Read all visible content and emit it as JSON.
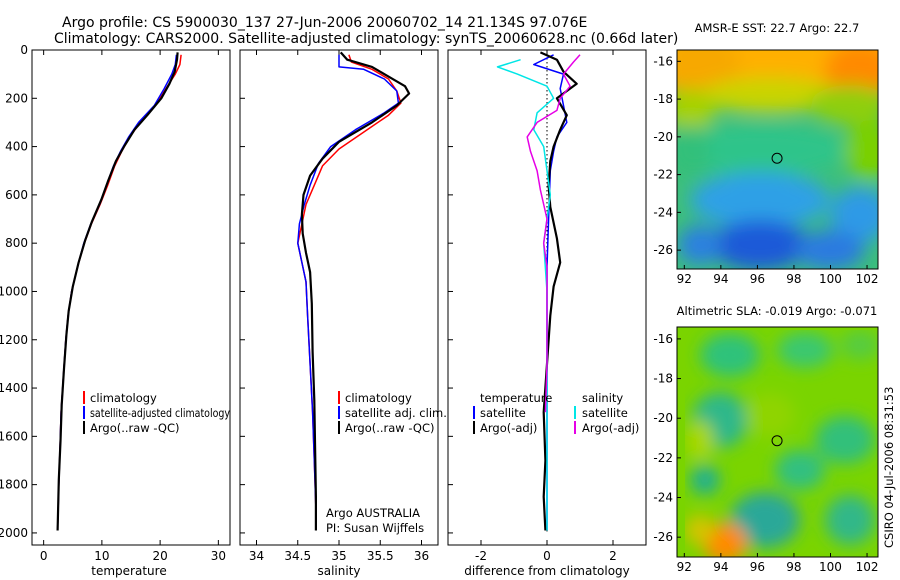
{
  "figure": {
    "title_line1": "Argo profile: CS 5900030_137 27-Jun-2006 20060702_14 21.134S 97.076E",
    "title_line2": "Climatology: CARS2000. Satellite-adjusted climatology: synTS_20060628.nc (0.66d later)",
    "footer": "CSIRO 04-Jul-2006 08:31:53",
    "argo_label": "Argo AUSTRALIA",
    "pi_label": "PI: Susan Wijffels"
  },
  "colors": {
    "climatology": "#ff0000",
    "satellite": "#0000ff",
    "argo": "#000000",
    "sal_satellite": "#00e6e6",
    "sal_argo": "#e600e6"
  },
  "chart_data": [
    {
      "type": "line",
      "xlabel": "temperature",
      "ylabel": "",
      "xlim": [
        -2,
        32
      ],
      "ylim": [
        2050,
        0
      ],
      "xticks": [
        0,
        10,
        20,
        30
      ],
      "yticks": [
        0,
        200,
        400,
        600,
        800,
        1000,
        1200,
        1400,
        1600,
        1800,
        2000
      ],
      "legend": [
        "climatology",
        "satellite-adjusted climatology",
        "Argo(..raw -QC)"
      ],
      "series": [
        {
          "name": "climatology",
          "color": "#ff0000",
          "points": [
            [
              23.6,
              20
            ],
            [
              23.4,
              60
            ],
            [
              22.6,
              100
            ],
            [
              21.0,
              160
            ],
            [
              19.2,
              230
            ],
            [
              16.6,
              300
            ],
            [
              14.8,
              360
            ],
            [
              13.4,
              420
            ],
            [
              12.2,
              480
            ],
            [
              11.0,
              560
            ],
            [
              9.7,
              640
            ],
            [
              8.2,
              720
            ],
            [
              7.0,
              800
            ],
            [
              5.8,
              900
            ],
            [
              4.8,
              1000
            ],
            [
              4.2,
              1100
            ],
            [
              3.8,
              1200
            ],
            [
              3.4,
              1350
            ],
            [
              3.0,
              1500
            ],
            [
              2.8,
              1650
            ],
            [
              2.6,
              1800
            ],
            [
              2.4,
              1990
            ]
          ]
        },
        {
          "name": "satellite-adjusted climatology",
          "color": "#0000ff",
          "points": [
            [
              22.8,
              20
            ],
            [
              22.6,
              60
            ],
            [
              22.0,
              100
            ],
            [
              20.7,
              160
            ],
            [
              19.0,
              230
            ],
            [
              16.3,
              300
            ],
            [
              14.6,
              360
            ],
            [
              13.2,
              420
            ],
            [
              12.0,
              480
            ],
            [
              10.8,
              560
            ],
            [
              9.6,
              640
            ],
            [
              8.1,
              720
            ],
            [
              6.9,
              800
            ],
            [
              5.8,
              900
            ],
            [
              4.8,
              1000
            ],
            [
              4.2,
              1100
            ],
            [
              3.8,
              1200
            ],
            [
              3.4,
              1350
            ],
            [
              3.0,
              1500
            ],
            [
              2.8,
              1650
            ],
            [
              2.6,
              1800
            ],
            [
              2.4,
              1990
            ]
          ]
        },
        {
          "name": "Argo(..raw -QC)",
          "color": "#000000",
          "points": [
            [
              23.0,
              10
            ],
            [
              22.9,
              40
            ],
            [
              22.5,
              90
            ],
            [
              21.6,
              140
            ],
            [
              20.2,
              200
            ],
            [
              17.8,
              270
            ],
            [
              15.6,
              330
            ],
            [
              13.8,
              400
            ],
            [
              12.4,
              460
            ],
            [
              11.1,
              540
            ],
            [
              9.9,
              620
            ],
            [
              8.3,
              710
            ],
            [
              7.1,
              790
            ],
            [
              6.0,
              880
            ],
            [
              5.0,
              980
            ],
            [
              4.3,
              1080
            ],
            [
              3.9,
              1180
            ],
            [
              3.5,
              1320
            ],
            [
              3.1,
              1470
            ],
            [
              2.9,
              1620
            ],
            [
              2.6,
              1780
            ],
            [
              2.4,
              1990
            ]
          ]
        }
      ]
    },
    {
      "type": "line",
      "xlabel": "salinity",
      "ylabel": "",
      "xlim": [
        33.8,
        36.2
      ],
      "ylim": [
        2050,
        0
      ],
      "xticks": [
        34,
        34.5,
        35,
        35.5,
        36
      ],
      "xtick_labels": [
        "34",
        "34.5",
        "35",
        "35.5",
        "36"
      ],
      "legend": [
        "climatology",
        "satellite adj. clim.",
        "Argo(..raw -QC)"
      ],
      "series": [
        {
          "name": "climatology",
          "color": "#ff0000",
          "points": [
            [
              35.12,
              20
            ],
            [
              35.15,
              50
            ],
            [
              35.4,
              80
            ],
            [
              35.6,
              120
            ],
            [
              35.7,
              170
            ],
            [
              35.75,
              220
            ],
            [
              35.6,
              270
            ],
            [
              35.3,
              340
            ],
            [
              35.0,
              410
            ],
            [
              34.8,
              480
            ],
            [
              34.7,
              560
            ],
            [
              34.6,
              640
            ],
            [
              34.55,
              720
            ],
            [
              34.5,
              800
            ],
            [
              34.55,
              880
            ],
            [
              34.6,
              960
            ],
            [
              34.62,
              1100
            ],
            [
              34.65,
              1300
            ],
            [
              34.68,
              1500
            ],
            [
              34.7,
              1700
            ],
            [
              34.72,
              1900
            ],
            [
              34.72,
              1990
            ]
          ]
        },
        {
          "name": "satellite adj. clim.",
          "color": "#0000ff",
          "points": [
            [
              35.0,
              20
            ],
            [
              35.0,
              70
            ],
            [
              35.3,
              80
            ],
            [
              35.55,
              120
            ],
            [
              35.7,
              170
            ],
            [
              35.72,
              220
            ],
            [
              35.55,
              260
            ],
            [
              35.2,
              330
            ],
            [
              34.9,
              400
            ],
            [
              34.75,
              470
            ],
            [
              34.65,
              560
            ],
            [
              34.58,
              640
            ],
            [
              34.52,
              720
            ],
            [
              34.5,
              800
            ],
            [
              34.55,
              880
            ],
            [
              34.6,
              960
            ],
            [
              34.62,
              1100
            ],
            [
              34.65,
              1300
            ],
            [
              34.68,
              1500
            ],
            [
              34.7,
              1700
            ],
            [
              34.72,
              1900
            ],
            [
              34.72,
              1990
            ]
          ]
        },
        {
          "name": "Argo(..raw -QC)",
          "color": "#000000",
          "points": [
            [
              35.02,
              10
            ],
            [
              35.1,
              40
            ],
            [
              35.4,
              70
            ],
            [
              35.6,
              110
            ],
            [
              35.8,
              150
            ],
            [
              35.85,
              180
            ],
            [
              35.7,
              230
            ],
            [
              35.4,
              300
            ],
            [
              35.0,
              380
            ],
            [
              34.8,
              450
            ],
            [
              34.65,
              520
            ],
            [
              34.57,
              600
            ],
            [
              34.55,
              680
            ],
            [
              34.56,
              760
            ],
            [
              34.6,
              840
            ],
            [
              34.65,
              920
            ],
            [
              34.67,
              1050
            ],
            [
              34.68,
              1250
            ],
            [
              34.7,
              1450
            ],
            [
              34.71,
              1650
            ],
            [
              34.72,
              1850
            ],
            [
              34.72,
              1990
            ]
          ]
        }
      ]
    },
    {
      "type": "line",
      "xlabel": "difference from climatology",
      "ylabel": "",
      "xlim": [
        -3.0,
        3.0
      ],
      "ylim": [
        2050,
        0
      ],
      "xticks": [
        -2,
        0,
        2
      ],
      "legend_left": [
        "temperature",
        "satellite",
        "Argo(-adj)"
      ],
      "legend_right": [
        "salinity",
        "satellite",
        "Argo(-adj)"
      ],
      "series": [
        {
          "name": "temperature satellite",
          "color": "#0000ff",
          "points": [
            [
              0.2,
              20
            ],
            [
              -0.4,
              60
            ],
            [
              0.5,
              100
            ],
            [
              0.4,
              160
            ],
            [
              0.5,
              230
            ],
            [
              0.6,
              300
            ],
            [
              0.3,
              360
            ],
            [
              0.2,
              420
            ],
            [
              0.1,
              500
            ],
            [
              0.05,
              700
            ],
            [
              0.0,
              900
            ],
            [
              0.0,
              1200
            ],
            [
              0.0,
              1600
            ],
            [
              0.0,
              1990
            ]
          ]
        },
        {
          "name": "temperature Argo(-adj)",
          "color": "#000000",
          "points": [
            [
              -0.2,
              10
            ],
            [
              0.3,
              40
            ],
            [
              0.5,
              90
            ],
            [
              0.9,
              140
            ],
            [
              0.3,
              200
            ],
            [
              0.6,
              270
            ],
            [
              0.4,
              330
            ],
            [
              0.2,
              400
            ],
            [
              0.1,
              460
            ],
            [
              0.05,
              560
            ],
            [
              0.1,
              650
            ],
            [
              0.3,
              780
            ],
            [
              0.4,
              880
            ],
            [
              0.2,
              980
            ],
            [
              0.1,
              1100
            ],
            [
              0.0,
              1300
            ],
            [
              -0.1,
              1500
            ],
            [
              -0.05,
              1700
            ],
            [
              -0.1,
              1850
            ],
            [
              -0.05,
              1990
            ]
          ]
        },
        {
          "name": "salinity satellite",
          "color": "#00e6e6",
          "points": [
            [
              -0.8,
              40
            ],
            [
              -1.5,
              70
            ],
            [
              -0.9,
              100
            ],
            [
              0.0,
              150
            ],
            [
              0.2,
              200
            ],
            [
              -0.3,
              260
            ],
            [
              -0.4,
              330
            ],
            [
              -0.1,
              400
            ],
            [
              0.0,
              500
            ],
            [
              0.1,
              600
            ],
            [
              0.0,
              700
            ],
            [
              -0.1,
              800
            ],
            [
              0.0,
              1000
            ],
            [
              0.0,
              1300
            ],
            [
              0.0,
              1600
            ],
            [
              0.0,
              1990
            ]
          ]
        },
        {
          "name": "salinity Argo(-adj)",
          "color": "#e600e6",
          "points": [
            [
              1.0,
              20
            ],
            [
              0.8,
              50
            ],
            [
              0.5,
              100
            ],
            [
              0.7,
              150
            ],
            [
              0.4,
              200
            ],
            [
              0.3,
              250
            ],
            [
              -0.3,
              300
            ],
            [
              -0.6,
              360
            ],
            [
              -0.5,
              420
            ],
            [
              -0.3,
              500
            ],
            [
              -0.2,
              580
            ],
            [
              -0.1,
              640
            ],
            [
              0.0,
              700
            ],
            [
              -0.1,
              800
            ],
            [
              0.0,
              900
            ],
            [
              0.0,
              1100
            ],
            [
              0.0,
              1300
            ],
            [
              -0.05,
              1500
            ]
          ]
        }
      ]
    },
    {
      "type": "heatmap",
      "title": "AMSR-E SST: 22.7 Argo: 22.7",
      "xlim": [
        91.6,
        102.6
      ],
      "ylim": [
        -27.0,
        -15.4
      ],
      "xticks": [
        92,
        94,
        96,
        98,
        100,
        102
      ],
      "yticks": [
        -16,
        -18,
        -20,
        -22,
        -24,
        -26
      ],
      "marker": [
        97.076,
        -21.134
      ]
    },
    {
      "type": "heatmap",
      "title": "Altimetric SLA: -0.019 Argo: -0.071",
      "xlim": [
        91.6,
        102.6
      ],
      "ylim": [
        -27.0,
        -15.4
      ],
      "xticks": [
        92,
        94,
        96,
        98,
        100,
        102
      ],
      "yticks": [
        -16,
        -18,
        -20,
        -22,
        -24,
        -26
      ],
      "marker": [
        97.076,
        -21.134
      ]
    }
  ]
}
